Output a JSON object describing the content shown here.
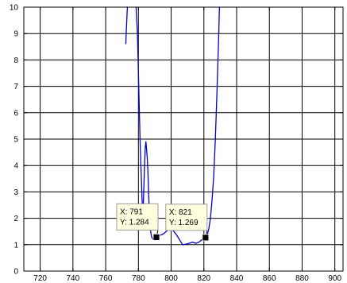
{
  "chart_data": {
    "type": "line",
    "title": "",
    "xlabel": "",
    "ylabel": "",
    "xlim": [
      710,
      905
    ],
    "ylim": [
      0,
      10
    ],
    "x_ticks": [
      720,
      740,
      760,
      780,
      800,
      820,
      840,
      860,
      880,
      900
    ],
    "y_ticks": [
      0,
      1,
      2,
      3,
      4,
      5,
      6,
      7,
      8,
      9,
      10
    ],
    "grid": true,
    "legend": "none",
    "series": [
      {
        "color": "#0000cc",
        "x": [
          772.3,
          772.6,
          772.9,
          773.1,
          773.3
        ],
        "y": [
          8.6,
          9.1,
          9.5,
          9.8,
          10.0
        ]
      },
      {
        "color": "#0000cc",
        "x": [
          778.6,
          779.0,
          779.4,
          779.8,
          780.2,
          780.6,
          781.0,
          781.4,
          781.8,
          782.2,
          782.6,
          783.0,
          783.4,
          783.8,
          784.2,
          784.6,
          785.0,
          785.4,
          785.8,
          786.2,
          786.6,
          787.0,
          787.5,
          788.0,
          789.0,
          790.0,
          791.0,
          792.0,
          793.0,
          795.0,
          797.0,
          799.0,
          801.0,
          803.0,
          805.0,
          807.0,
          809.0,
          811.0,
          813.0,
          815.0,
          817.0,
          819.0,
          821.0,
          822.0,
          823.0,
          824.0,
          825.0,
          826.0,
          827.0,
          828.0,
          829.0,
          829.5
        ],
        "y": [
          10.0,
          9.5,
          9.0,
          8.0,
          7.0,
          6.0,
          5.0,
          4.2,
          3.5,
          2.8,
          2.2,
          2.5,
          3.3,
          4.1,
          4.7,
          4.9,
          4.6,
          4.3,
          3.8,
          3.0,
          2.4,
          1.8,
          1.5,
          1.3,
          1.2,
          1.22,
          1.284,
          1.3,
          1.35,
          1.4,
          1.5,
          1.6,
          1.55,
          1.4,
          1.2,
          1.0,
          1.02,
          1.05,
          1.1,
          1.05,
          1.1,
          1.2,
          1.269,
          1.35,
          1.6,
          2.0,
          2.7,
          3.6,
          5.0,
          6.8,
          8.8,
          10.0
        ]
      }
    ],
    "datatips": [
      {
        "x_label": "X: 791",
        "y_label": "Y: 1.284",
        "x": 791,
        "y": 1.284
      },
      {
        "x_label": "X: 821",
        "y_label": "Y: 1.269",
        "x": 821,
        "y": 1.269
      }
    ]
  }
}
